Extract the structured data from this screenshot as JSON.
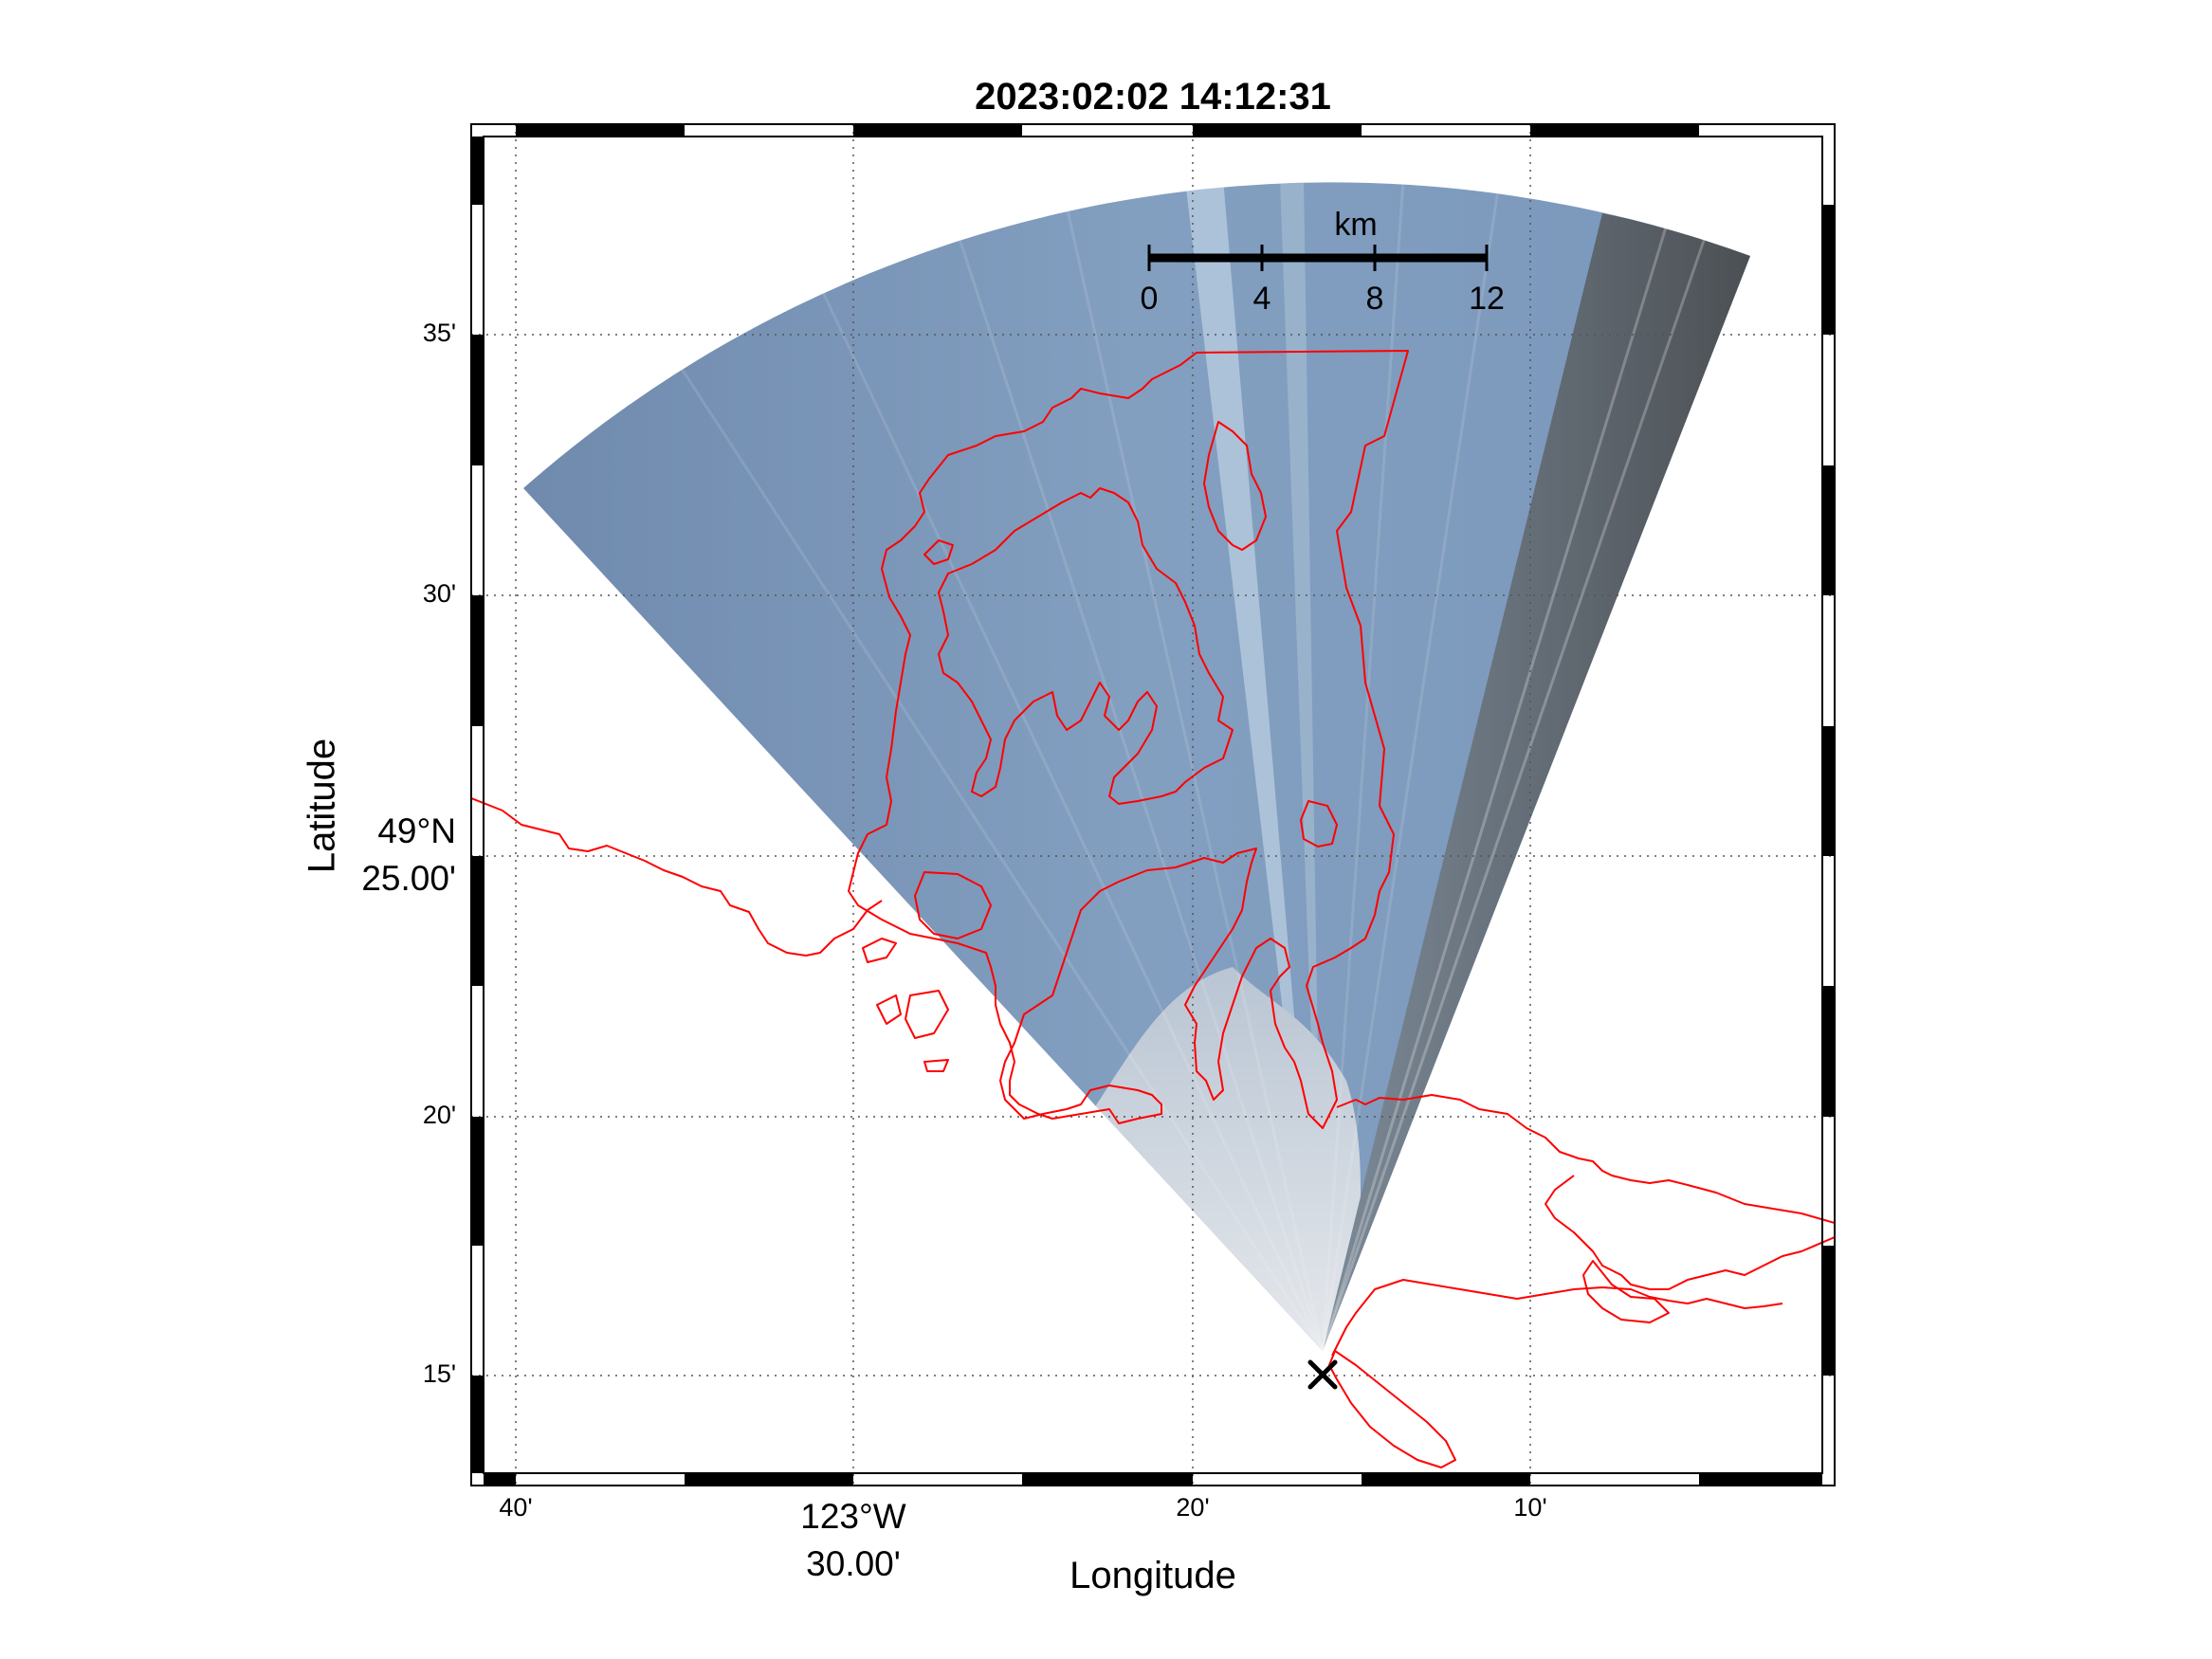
{
  "title": "2023:02:02 14:12:31",
  "x_axis": {
    "label": "Longitude",
    "ticks": [
      {
        "value": -123.6667,
        "label": "40'"
      },
      {
        "value": -123.3333,
        "label": "20'"
      },
      {
        "value": -123.1667,
        "label": "10'"
      }
    ],
    "major_label": {
      "value": -123.5,
      "line1": "123°W",
      "line2": "30.00'"
    }
  },
  "y_axis": {
    "label": "Latitude",
    "ticks": [
      {
        "value": 49.5833,
        "label": "35'"
      },
      {
        "value": 49.5,
        "label": "30'"
      },
      {
        "value": 49.3333,
        "label": "20'"
      },
      {
        "value": 49.25,
        "label": "15'"
      }
    ],
    "major_label": {
      "value": 49.4167,
      "line1": "49°N",
      "line2": "25.00'"
    }
  },
  "scale_bar": {
    "unit": "km",
    "ticks": [
      "0",
      "4",
      "8",
      "12"
    ]
  },
  "station_marker": {
    "symbol": "✕",
    "lon": -123.27,
    "lat": 49.25
  },
  "colors": {
    "coastline": "#ff0000",
    "sky_blue": "#7f9cbe",
    "cloud_white": "#d8dde3",
    "gray_band": "#5a5f63",
    "frame": "#000000",
    "grid": "#555555"
  },
  "layers": {
    "coastline": "red outline",
    "sky_image": "wedge-shaped camera projection",
    "grid": "dotted"
  }
}
